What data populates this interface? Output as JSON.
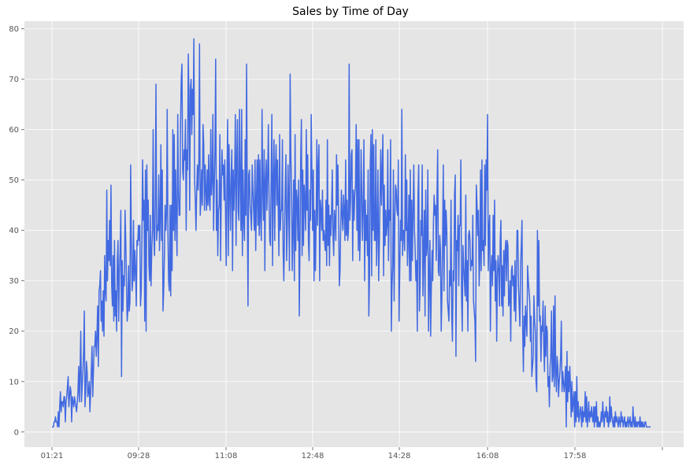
{
  "chart_data": {
    "type": "line",
    "title": "Sales by Time of Day",
    "xlabel": "",
    "ylabel": "",
    "x_ticks": [
      "01:21",
      "09:28",
      "11:08",
      "12:48",
      "14:28",
      "16:08",
      "17:58",
      ""
    ],
    "y_ticks": [
      "0",
      "10",
      "20",
      "30",
      "40",
      "50",
      "60",
      "70",
      "80"
    ],
    "ylim": [
      -3,
      81.5
    ],
    "grid": true,
    "background": "#e5e5e5",
    "grid_color": "#ffffff",
    "line_color": "#4169e1",
    "series": [
      {
        "values": [
          1,
          1,
          1,
          2,
          2,
          3,
          2,
          2,
          1,
          4,
          1,
          5,
          8,
          4,
          6,
          6,
          5,
          7,
          7,
          2,
          6,
          7,
          9,
          11,
          5,
          7,
          9,
          8,
          2,
          7,
          6,
          5,
          7,
          6,
          5,
          4,
          6,
          8,
          13,
          6,
          12,
          20,
          6,
          9,
          12,
          16,
          24,
          5,
          8,
          14,
          12,
          7,
          8,
          10,
          4,
          8,
          12,
          17,
          7,
          12,
          17,
          17,
          20,
          15,
          19,
          25,
          13,
          28,
          29,
          32,
          22,
          26,
          20,
          28,
          19,
          35,
          28,
          26,
          48,
          30,
          38,
          34,
          42,
          33,
          49,
          29,
          25,
          35,
          22,
          38,
          23,
          28,
          20,
          34,
          38,
          22,
          32,
          36,
          44,
          11,
          34,
          24,
          31,
          29,
          44,
          38,
          30,
          22,
          24,
          33,
          24,
          26,
          53,
          38,
          28,
          30,
          42,
          30,
          36,
          32,
          25,
          38,
          37,
          41,
          38,
          41,
          25,
          28,
          38,
          54,
          42,
          46,
          22,
          52,
          20,
          53,
          40,
          46,
          33,
          30,
          43,
          29,
          36,
          40,
          60,
          39,
          35,
          45,
          69,
          38,
          41,
          40,
          51,
          36,
          42,
          57,
          38,
          52,
          24,
          28,
          35,
          45,
          40,
          43,
          64,
          40,
          30,
          28,
          45,
          27,
          45,
          32,
          60,
          40,
          59,
          38,
          52,
          42,
          35,
          63,
          48,
          43,
          43,
          61,
          70,
          73,
          52,
          50,
          56,
          54,
          62,
          40,
          56,
          52,
          75,
          66,
          44,
          68,
          70,
          59,
          68,
          63,
          78,
          50,
          46,
          40,
          48,
          53,
          48,
          53,
          77,
          43,
          46,
          52,
          45,
          61,
          57,
          44,
          53,
          48,
          44,
          52,
          45,
          55,
          46,
          44,
          60,
          47,
          50,
          63,
          40,
          49,
          56,
          74,
          40,
          50,
          35,
          44,
          45,
          59,
          34,
          48,
          56,
          51,
          53,
          46,
          54,
          44,
          33,
          50,
          62,
          35,
          57,
          48,
          40,
          51,
          56,
          32,
          52,
          44,
          50,
          63,
          37,
          54,
          62,
          44,
          42,
          64,
          50,
          40,
          64,
          35,
          52,
          42,
          38,
          58,
          43,
          73,
          46,
          25,
          51,
          52,
          45,
          43,
          40,
          53,
          48,
          44,
          40,
          54,
          36,
          46,
          54,
          41,
          55,
          39,
          54,
          42,
          38,
          64,
          48,
          42,
          56,
          32,
          50,
          54,
          44,
          51,
          61,
          46,
          38,
          37,
          51,
          63,
          33,
          50,
          58,
          38,
          52,
          57,
          45,
          54,
          45,
          35,
          59,
          40,
          44,
          44,
          58,
          36,
          30,
          40,
          48,
          55,
          34,
          41,
          53,
          45,
          32,
          71,
          55,
          48,
          32,
          40,
          50,
          30,
          59,
          36,
          48,
          46,
          38,
          50,
          23,
          37,
          54,
          62,
          35,
          52,
          37,
          49,
          46,
          40,
          60,
          44,
          55,
          38,
          34,
          48,
          42,
          63,
          52,
          40,
          52,
          30,
          44,
          32,
          42,
          58,
          41,
          53,
          57,
          30,
          46,
          44,
          40,
          48,
          38,
          40,
          38,
          36,
          46,
          33,
          58,
          37,
          45,
          33,
          43,
          39,
          44,
          52,
          39,
          35,
          44,
          42,
          38,
          55,
          45,
          53,
          43,
          29,
          32,
          41,
          48,
          43,
          40,
          47,
          44,
          38,
          54,
          39,
          46,
          38,
          40,
          73,
          42,
          46,
          55,
          56,
          34,
          48,
          42,
          47,
          49,
          61,
          40,
          58,
          36,
          58,
          34,
          40,
          56,
          47,
          38,
          45,
          58,
          30,
          46,
          38,
          43,
          35,
          52,
          23,
          31,
          53,
          59,
          31,
          60,
          40,
          57,
          38,
          38,
          58,
          33,
          40,
          52,
          30,
          38,
          47,
          56,
          45,
          52,
          59,
          31,
          49,
          37,
          44,
          39,
          41,
          56,
          34,
          44,
          42,
          58,
          20,
          29,
          33,
          52,
          26,
          42,
          49,
          48,
          44,
          43,
          54,
          22,
          32,
          42,
          38,
          64,
          35,
          40,
          40,
          36,
          55,
          40,
          50,
          33,
          38,
          47,
          30,
          52,
          30,
          46,
          34,
          44,
          53,
          40,
          36,
          30,
          34,
          20,
          47,
          53,
          24,
          29,
          42,
          39,
          53,
          27,
          36,
          44,
          23,
          48,
          35,
          37,
          52,
          20,
          30,
          38,
          19,
          29,
          36,
          30,
          42,
          47,
          43,
          45,
          34,
          47,
          56,
          32,
          31,
          39,
          36,
          20,
          27,
          38,
          53,
          28,
          46,
          37,
          44,
          40,
          26,
          24,
          22,
          32,
          29,
          46,
          23,
          18,
          32,
          30,
          47,
          51,
          15,
          38,
          36,
          43,
          29,
          41,
          41,
          54,
          27,
          20,
          37,
          33,
          30,
          27,
          47,
          26,
          34,
          20,
          39,
          40,
          38,
          32,
          34,
          33,
          43,
          26,
          24,
          22,
          14,
          49,
          45,
          39,
          44,
          29,
          34,
          52,
          32,
          54,
          36,
          38,
          33,
          53,
          37,
          54,
          48,
          63,
          32,
          40,
          43,
          20,
          32,
          35,
          29,
          43,
          32,
          46,
          26,
          34,
          18,
          31,
          35,
          32,
          25,
          38,
          42,
          25,
          33,
          23,
          36,
          27,
          36,
          38,
          30,
          38,
          37,
          25,
          26,
          30,
          18,
          32,
          33,
          29,
          31,
          24,
          34,
          22,
          30,
          40,
          40,
          29,
          25,
          21,
          33,
          37,
          42,
          20,
          12,
          23,
          17,
          25,
          22,
          19,
          33,
          30,
          28,
          26,
          18,
          23,
          11,
          13,
          15,
          27,
          22,
          20,
          10,
          8,
          40,
          25,
          38,
          22,
          23,
          14,
          21,
          20,
          26,
          17,
          12,
          25,
          15,
          21,
          20,
          9,
          11,
          5,
          13,
          15,
          24,
          10,
          11,
          25,
          9,
          27,
          12,
          8,
          15,
          13,
          7,
          10,
          12,
          15,
          22,
          8,
          12,
          10,
          8,
          10,
          13,
          1,
          16,
          6,
          12,
          8,
          13,
          9,
          3,
          10,
          4,
          6,
          8,
          1,
          8,
          2,
          11,
          3,
          6,
          2,
          3,
          5,
          4,
          1,
          5,
          2,
          4,
          3,
          8,
          2,
          7,
          1,
          3,
          6,
          2,
          4,
          3,
          5,
          3,
          2,
          5,
          1,
          5,
          2,
          6,
          1,
          3,
          1,
          2,
          1,
          2,
          4,
          2,
          6,
          3,
          1,
          4,
          3,
          5,
          2,
          4,
          1,
          2,
          7,
          2,
          5,
          3,
          2,
          1,
          3,
          1,
          4,
          2,
          3,
          2,
          1,
          3,
          2,
          1,
          4,
          2,
          3,
          1,
          2,
          3,
          1,
          2,
          1,
          2,
          3,
          1,
          2,
          3,
          1,
          2,
          1,
          5,
          2,
          1,
          3,
          1,
          2,
          1,
          2,
          2,
          1,
          3,
          1,
          2,
          1,
          2,
          1,
          1,
          2,
          2,
          1,
          1,
          1,
          1,
          1,
          1,
          1
        ]
      }
    ]
  }
}
